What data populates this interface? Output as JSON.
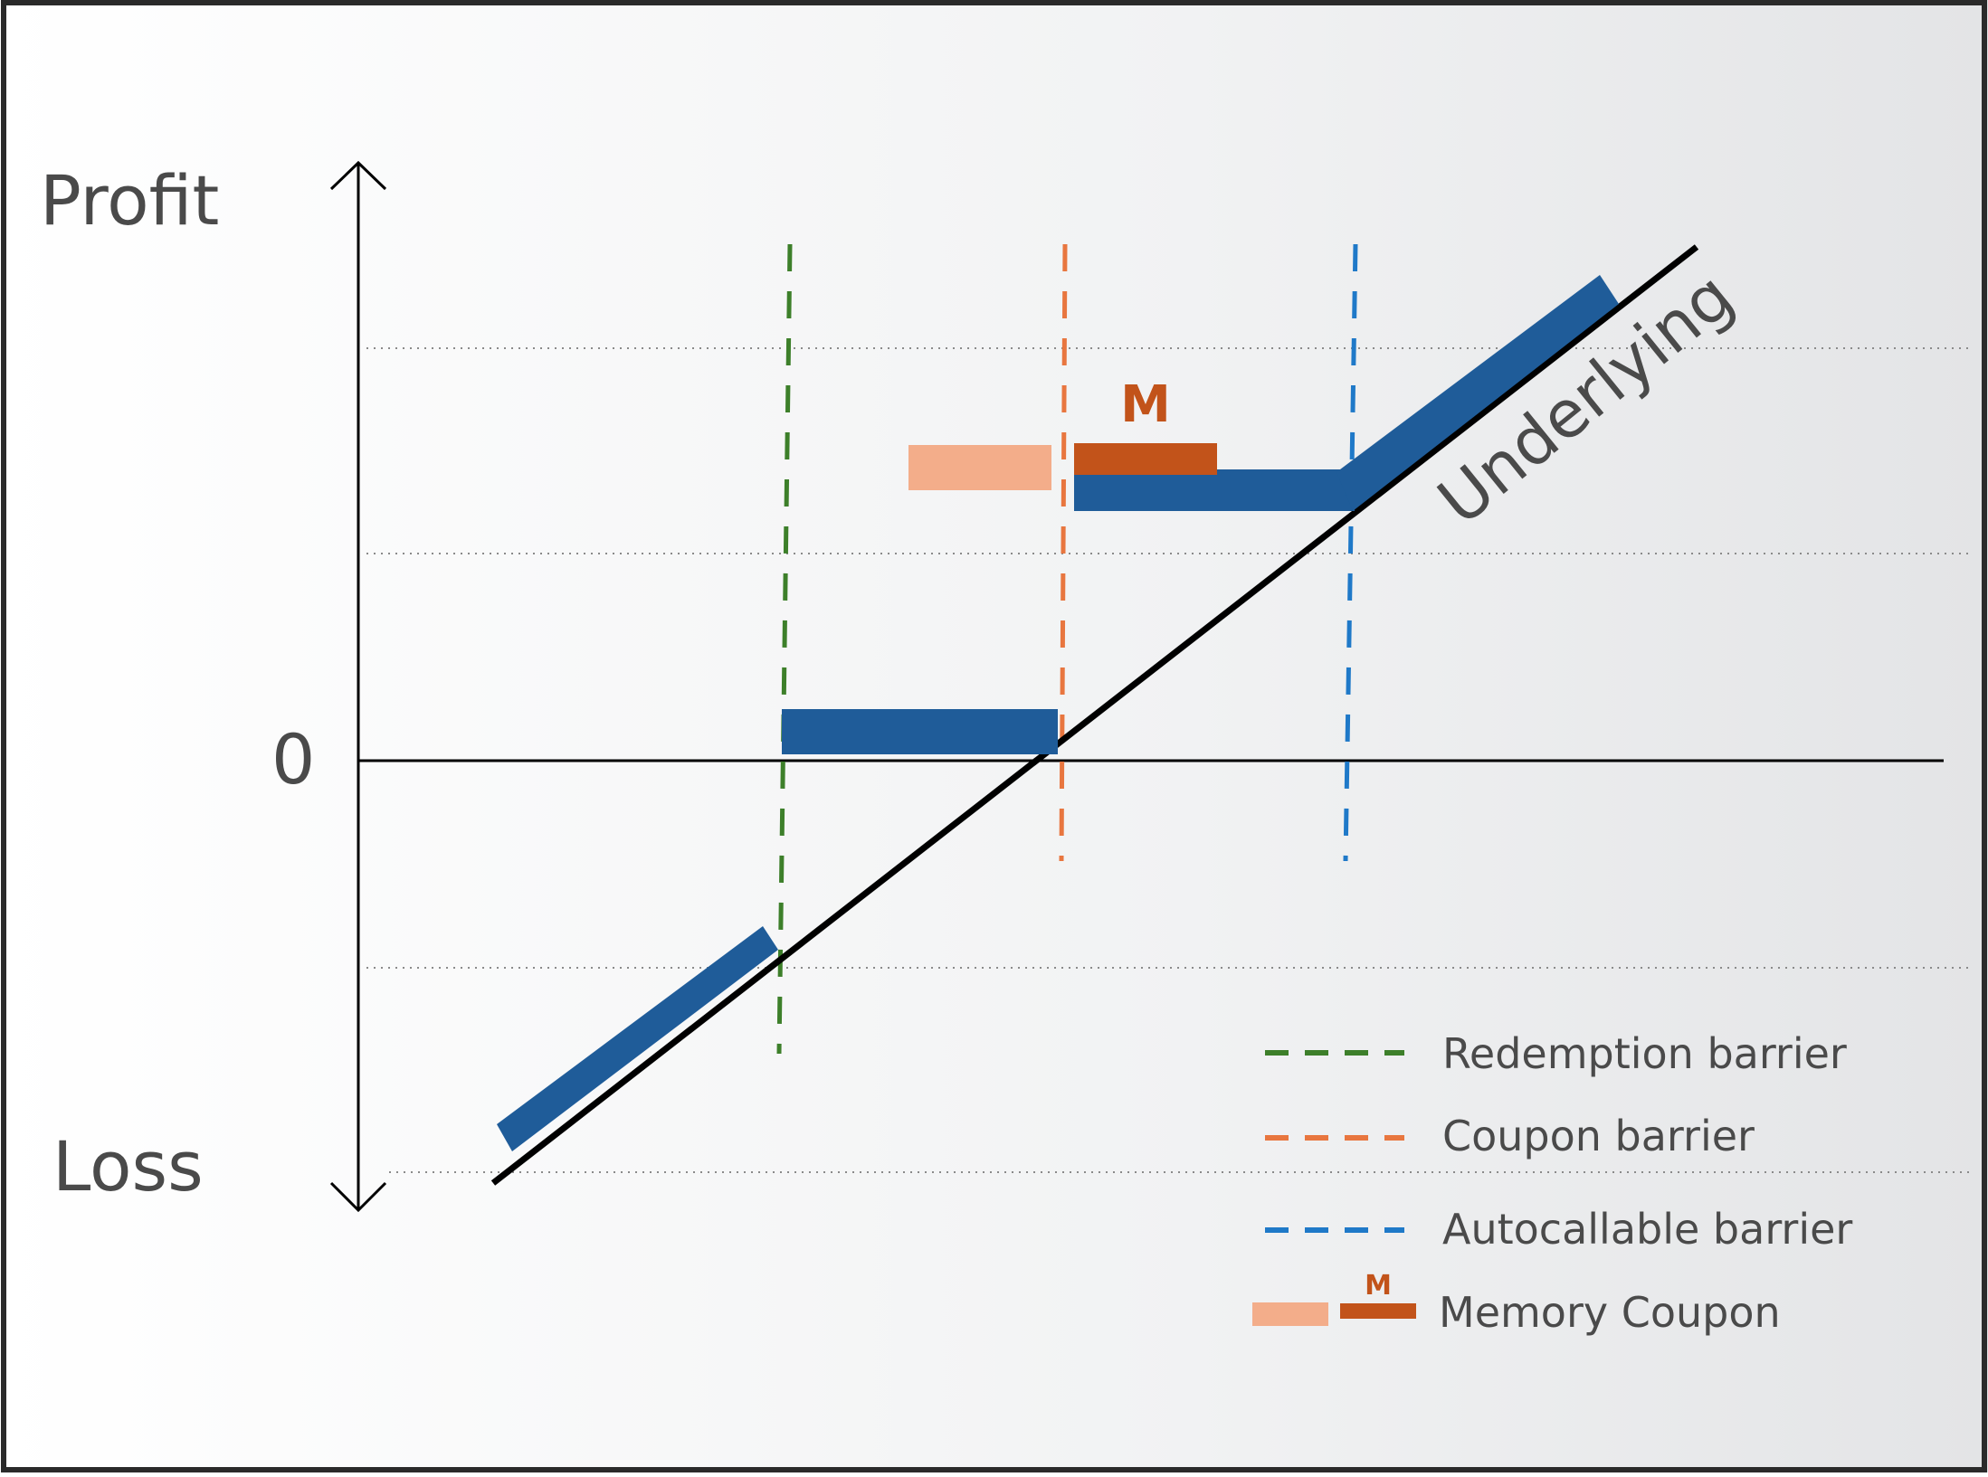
{
  "axis_labels": {
    "profit": "Profit",
    "zero": "0",
    "loss": "Loss"
  },
  "underlying_label": "Underlying",
  "memory_marker": "M",
  "legend": {
    "redemption": "Redemption barrier",
    "coupon": "Coupon barrier",
    "autocallable": "Autocallable barrier",
    "memory_coupon": "Memory Coupon",
    "memory_marker": "M"
  },
  "colors": {
    "payoff": "#1f5c99",
    "redemption_barrier": "#3d7f2a",
    "coupon_barrier": "#e8763f",
    "autocallable_barrier": "#1f79c8",
    "memory_light": "#f3ad8a",
    "memory_dark": "#c2531a",
    "axis": "#000000",
    "text": "#4a4a4a"
  }
}
